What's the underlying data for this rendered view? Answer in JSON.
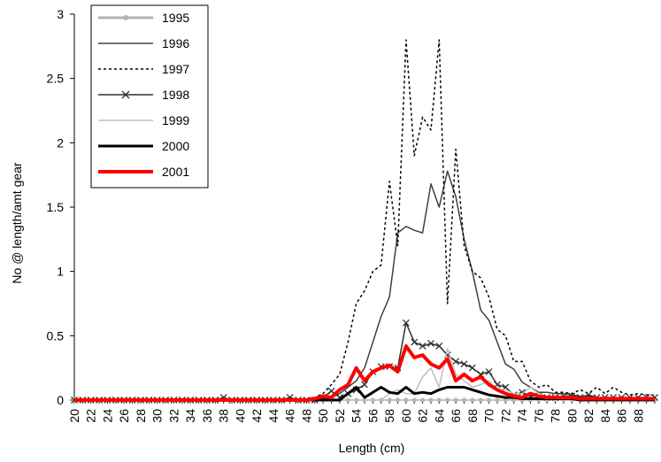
{
  "chart_data": {
    "type": "line",
    "xlabel": "Length (cm)",
    "ylabel": "No @ length/amt gear",
    "xlim": [
      20,
      90
    ],
    "ylim": [
      0,
      3
    ],
    "x_ticks": [
      "20",
      "22",
      "24",
      "26",
      "28",
      "30",
      "32",
      "34",
      "36",
      "38",
      "40",
      "42",
      "44",
      "46",
      "48",
      "50",
      "52",
      "54",
      "56",
      "58",
      "60",
      "62",
      "64",
      "66",
      "68",
      "70",
      "72",
      "74",
      "76",
      "78",
      "80",
      "82",
      "84",
      "86",
      "88"
    ],
    "y_ticks": [
      "0",
      "0.5",
      "1",
      "1.5",
      "2",
      "2.5",
      "3"
    ],
    "legend_position": "top-left",
    "x": [
      20,
      21,
      22,
      23,
      24,
      25,
      26,
      27,
      28,
      29,
      30,
      31,
      32,
      33,
      34,
      35,
      36,
      37,
      38,
      39,
      40,
      41,
      42,
      43,
      44,
      45,
      46,
      47,
      48,
      49,
      50,
      51,
      52,
      53,
      54,
      55,
      56,
      57,
      58,
      59,
      60,
      61,
      62,
      63,
      64,
      65,
      66,
      67,
      68,
      69,
      70,
      71,
      72,
      73,
      74,
      75,
      76,
      77,
      78,
      79,
      80,
      81,
      82,
      83,
      84,
      85,
      86,
      87,
      88,
      89,
      90
    ],
    "series": [
      {
        "name": "1995",
        "color": "#b3b3b3",
        "marker": "dot",
        "values": [
          0,
          0,
          0,
          0,
          0,
          0,
          0,
          0,
          0,
          0,
          0,
          0,
          0,
          0,
          0,
          0,
          0,
          0,
          0,
          0,
          0,
          0,
          0,
          0,
          0,
          0,
          0,
          0,
          0,
          0,
          0,
          0,
          0,
          0,
          0,
          0,
          0,
          0,
          0,
          0,
          0,
          0,
          0,
          0,
          0,
          0,
          0,
          0,
          0,
          0,
          0,
          0,
          0,
          0,
          0,
          0,
          0,
          0,
          0,
          0,
          0,
          0,
          0,
          0,
          0,
          0,
          0,
          0,
          0,
          0,
          0
        ]
      },
      {
        "name": "1996",
        "color": "#404040",
        "marker": "none",
        "values": [
          0,
          0,
          0,
          0,
          0,
          0,
          0,
          0,
          0,
          0,
          0,
          0,
          0,
          0,
          0,
          0,
          0,
          0,
          0,
          0,
          0,
          0,
          0,
          0,
          0,
          0,
          0,
          0,
          0,
          0,
          0.01,
          0.02,
          0.05,
          0.1,
          0.15,
          0.25,
          0.45,
          0.65,
          0.8,
          1.3,
          1.35,
          1.32,
          1.3,
          1.68,
          1.5,
          1.78,
          1.58,
          1.25,
          1.0,
          0.7,
          0.62,
          0.45,
          0.28,
          0.24,
          0.14,
          0.1,
          0.06,
          0.06,
          0.05,
          0.05,
          0.04,
          0.03,
          0.03,
          0.02,
          0.02,
          0.02,
          0.01,
          0.01,
          0.01,
          0.01,
          0.01
        ]
      },
      {
        "name": "1997",
        "color": "#000000",
        "marker": "none",
        "dash": "dotted",
        "values": [
          0,
          0,
          0,
          0,
          0,
          0,
          0,
          0,
          0,
          0,
          0,
          0,
          0,
          0,
          0,
          0,
          0,
          0,
          0,
          0,
          0,
          0,
          0,
          0,
          0,
          0,
          0,
          0,
          0,
          0.02,
          0.05,
          0.12,
          0.2,
          0.45,
          0.75,
          0.85,
          1.0,
          1.05,
          1.7,
          1.2,
          2.8,
          1.9,
          2.2,
          2.1,
          2.8,
          0.75,
          1.95,
          1.2,
          1.0,
          0.95,
          0.8,
          0.55,
          0.5,
          0.3,
          0.3,
          0.15,
          0.1,
          0.12,
          0.06,
          0.06,
          0.05,
          0.08,
          0.05,
          0.1,
          0.05,
          0.1,
          0.06,
          0.04,
          0.05,
          0.04,
          0.04
        ]
      },
      {
        "name": "1998",
        "color": "#303030",
        "marker": "x",
        "values": [
          0,
          0,
          0,
          0,
          0,
          0,
          0,
          0,
          0,
          0,
          0,
          0,
          0,
          0,
          0,
          0,
          0,
          0,
          0.02,
          0,
          0,
          0,
          0,
          0,
          0,
          0,
          0.02,
          0,
          0,
          0,
          0.02,
          0.07,
          0.02,
          0.05,
          0.08,
          0.12,
          0.22,
          0.26,
          0.26,
          0.25,
          0.6,
          0.45,
          0.42,
          0.44,
          0.42,
          0.35,
          0.3,
          0.28,
          0.25,
          0.2,
          0.22,
          0.12,
          0.1,
          0.04,
          0.06,
          0.03,
          0.03,
          0.02,
          0.02,
          0.03,
          0.03,
          0.02,
          0.04,
          0.02,
          0.02,
          0.02,
          0.02,
          0.02,
          0.02,
          0.02,
          0.02
        ]
      },
      {
        "name": "1999",
        "color": "#bfbfbf",
        "marker": "none",
        "values": [
          0,
          0,
          0,
          0,
          0,
          0,
          0,
          0,
          0,
          0,
          0,
          0,
          0,
          0,
          0,
          0,
          0,
          0,
          0,
          0,
          0,
          0,
          0,
          0,
          0,
          0,
          0,
          0,
          0,
          0,
          0,
          0,
          0,
          0,
          0,
          0,
          0,
          0,
          0.05,
          0.08,
          0.05,
          0.05,
          0.18,
          0.25,
          0.1,
          0.4,
          0.2,
          0.15,
          0.1,
          0.12,
          0.15,
          0.08,
          0.08,
          0.05,
          0.05,
          0.1,
          0.05,
          0.02,
          0.02,
          0.02,
          0.02,
          0.02,
          0.02,
          0.02,
          0.02,
          0.02,
          0.02,
          0.01,
          0.01,
          0.01,
          0.01
        ]
      },
      {
        "name": "2000",
        "color": "#000000",
        "marker": "none",
        "thick": true,
        "values": [
          0,
          0,
          0,
          0,
          0,
          0,
          0,
          0,
          0,
          0,
          0,
          0,
          0,
          0,
          0,
          0,
          0,
          0,
          0,
          0,
          0,
          0,
          0,
          0,
          0,
          0,
          0,
          0,
          0,
          0,
          0,
          0,
          0,
          0.05,
          0.1,
          0.02,
          0.06,
          0.1,
          0.06,
          0.05,
          0.1,
          0.05,
          0.06,
          0.05,
          0.08,
          0.1,
          0.1,
          0.1,
          0.08,
          0.06,
          0.04,
          0.03,
          0.02,
          0.02,
          0.01,
          0.01,
          0.01,
          0.01,
          0.01,
          0.01,
          0.01,
          0,
          0,
          0,
          0,
          0,
          0,
          0,
          0,
          0,
          0
        ]
      },
      {
        "name": "2001",
        "color": "#ff0000",
        "marker": "none",
        "thick": true,
        "values": [
          0,
          0,
          0,
          0,
          0,
          0,
          0,
          0,
          0,
          0,
          0,
          0,
          0,
          0,
          0,
          0,
          0,
          0,
          0,
          0,
          0,
          0,
          0,
          0,
          0,
          0,
          0,
          0,
          0,
          0.01,
          0.03,
          0.02,
          0.08,
          0.12,
          0.25,
          0.15,
          0.22,
          0.25,
          0.27,
          0.22,
          0.42,
          0.33,
          0.35,
          0.28,
          0.25,
          0.32,
          0.15,
          0.2,
          0.15,
          0.18,
          0.12,
          0.08,
          0.05,
          0.03,
          0.02,
          0.05,
          0.03,
          0.02,
          0.02,
          0.02,
          0.02,
          0.01,
          0.01,
          0.01,
          0.01,
          0.01,
          0.01,
          0.01,
          0.01,
          0.01,
          0.01
        ]
      }
    ]
  }
}
